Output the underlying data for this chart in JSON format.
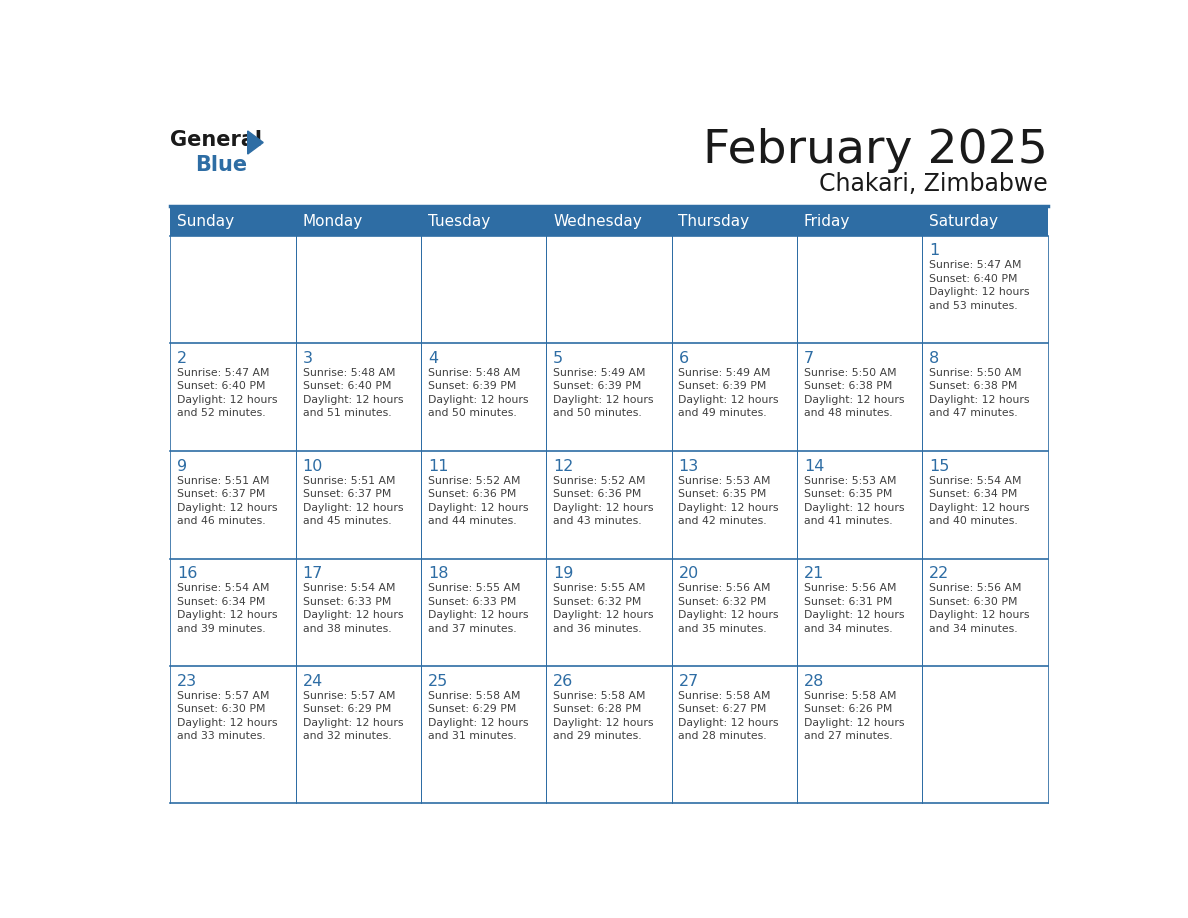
{
  "title": "February 2025",
  "subtitle": "Chakari, Zimbabwe",
  "header_bg": "#2E6DA4",
  "header_text_color": "#FFFFFF",
  "cell_bg": "#FFFFFF",
  "day_number_color": "#2E6DA4",
  "info_text_color": "#404040",
  "line_color": "#2E6DA4",
  "days_of_week": [
    "Sunday",
    "Monday",
    "Tuesday",
    "Wednesday",
    "Thursday",
    "Friday",
    "Saturday"
  ],
  "weeks": [
    [
      {
        "day": null,
        "sunrise": null,
        "sunset": null,
        "daylight_suffix": null
      },
      {
        "day": null,
        "sunrise": null,
        "sunset": null,
        "daylight_suffix": null
      },
      {
        "day": null,
        "sunrise": null,
        "sunset": null,
        "daylight_suffix": null
      },
      {
        "day": null,
        "sunrise": null,
        "sunset": null,
        "daylight_suffix": null
      },
      {
        "day": null,
        "sunrise": null,
        "sunset": null,
        "daylight_suffix": null
      },
      {
        "day": null,
        "sunrise": null,
        "sunset": null,
        "daylight_suffix": null
      },
      {
        "day": 1,
        "sunrise": "5:47 AM",
        "sunset": "6:40 PM",
        "daylight_suffix": "53 minutes."
      }
    ],
    [
      {
        "day": 2,
        "sunrise": "5:47 AM",
        "sunset": "6:40 PM",
        "daylight_suffix": "52 minutes."
      },
      {
        "day": 3,
        "sunrise": "5:48 AM",
        "sunset": "6:40 PM",
        "daylight_suffix": "51 minutes."
      },
      {
        "day": 4,
        "sunrise": "5:48 AM",
        "sunset": "6:39 PM",
        "daylight_suffix": "50 minutes."
      },
      {
        "day": 5,
        "sunrise": "5:49 AM",
        "sunset": "6:39 PM",
        "daylight_suffix": "50 minutes."
      },
      {
        "day": 6,
        "sunrise": "5:49 AM",
        "sunset": "6:39 PM",
        "daylight_suffix": "49 minutes."
      },
      {
        "day": 7,
        "sunrise": "5:50 AM",
        "sunset": "6:38 PM",
        "daylight_suffix": "48 minutes."
      },
      {
        "day": 8,
        "sunrise": "5:50 AM",
        "sunset": "6:38 PM",
        "daylight_suffix": "47 minutes."
      }
    ],
    [
      {
        "day": 9,
        "sunrise": "5:51 AM",
        "sunset": "6:37 PM",
        "daylight_suffix": "46 minutes."
      },
      {
        "day": 10,
        "sunrise": "5:51 AM",
        "sunset": "6:37 PM",
        "daylight_suffix": "45 minutes."
      },
      {
        "day": 11,
        "sunrise": "5:52 AM",
        "sunset": "6:36 PM",
        "daylight_suffix": "44 minutes."
      },
      {
        "day": 12,
        "sunrise": "5:52 AM",
        "sunset": "6:36 PM",
        "daylight_suffix": "43 minutes."
      },
      {
        "day": 13,
        "sunrise": "5:53 AM",
        "sunset": "6:35 PM",
        "daylight_suffix": "42 minutes."
      },
      {
        "day": 14,
        "sunrise": "5:53 AM",
        "sunset": "6:35 PM",
        "daylight_suffix": "41 minutes."
      },
      {
        "day": 15,
        "sunrise": "5:54 AM",
        "sunset": "6:34 PM",
        "daylight_suffix": "40 minutes."
      }
    ],
    [
      {
        "day": 16,
        "sunrise": "5:54 AM",
        "sunset": "6:34 PM",
        "daylight_suffix": "39 minutes."
      },
      {
        "day": 17,
        "sunrise": "5:54 AM",
        "sunset": "6:33 PM",
        "daylight_suffix": "38 minutes."
      },
      {
        "day": 18,
        "sunrise": "5:55 AM",
        "sunset": "6:33 PM",
        "daylight_suffix": "37 minutes."
      },
      {
        "day": 19,
        "sunrise": "5:55 AM",
        "sunset": "6:32 PM",
        "daylight_suffix": "36 minutes."
      },
      {
        "day": 20,
        "sunrise": "5:56 AM",
        "sunset": "6:32 PM",
        "daylight_suffix": "35 minutes."
      },
      {
        "day": 21,
        "sunrise": "5:56 AM",
        "sunset": "6:31 PM",
        "daylight_suffix": "34 minutes."
      },
      {
        "day": 22,
        "sunrise": "5:56 AM",
        "sunset": "6:30 PM",
        "daylight_suffix": "34 minutes."
      }
    ],
    [
      {
        "day": 23,
        "sunrise": "5:57 AM",
        "sunset": "6:30 PM",
        "daylight_suffix": "33 minutes."
      },
      {
        "day": 24,
        "sunrise": "5:57 AM",
        "sunset": "6:29 PM",
        "daylight_suffix": "32 minutes."
      },
      {
        "day": 25,
        "sunrise": "5:58 AM",
        "sunset": "6:29 PM",
        "daylight_suffix": "31 minutes."
      },
      {
        "day": 26,
        "sunrise": "5:58 AM",
        "sunset": "6:28 PM",
        "daylight_suffix": "29 minutes."
      },
      {
        "day": 27,
        "sunrise": "5:58 AM",
        "sunset": "6:27 PM",
        "daylight_suffix": "28 minutes."
      },
      {
        "day": 28,
        "sunrise": "5:58 AM",
        "sunset": "6:26 PM",
        "daylight_suffix": "27 minutes."
      },
      {
        "day": null,
        "sunrise": null,
        "sunset": null,
        "daylight_suffix": null
      }
    ]
  ]
}
